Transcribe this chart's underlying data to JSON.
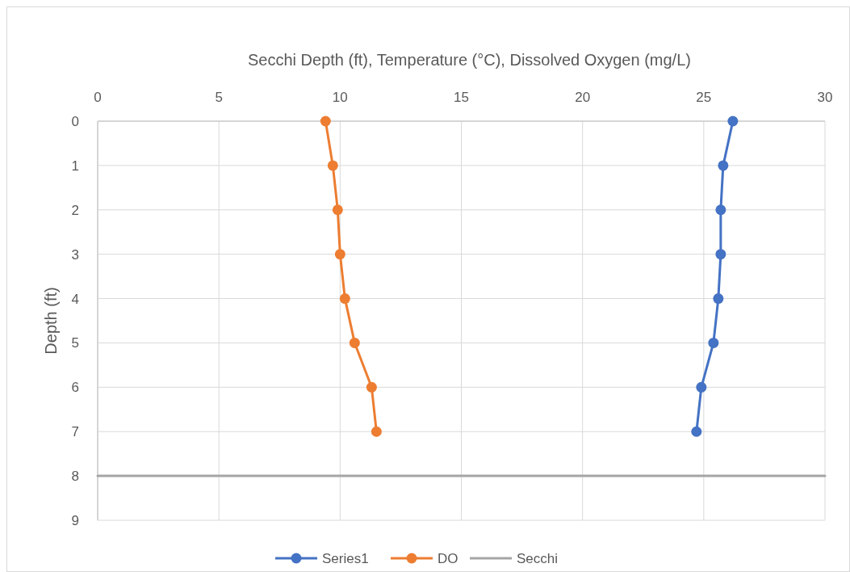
{
  "chart_data": {
    "type": "line",
    "xlabel": "Secchi Depth (ft), Temperature (°C), Dissolved Oxygen (mg/L)",
    "ylabel": "Depth (ft)",
    "xlim": [
      0,
      30
    ],
    "xticks": [
      0,
      5,
      10,
      15,
      20,
      25,
      30
    ],
    "ylim": [
      9,
      0
    ],
    "yticks": [
      0,
      1,
      2,
      3,
      4,
      5,
      6,
      7,
      8,
      9
    ],
    "grid": true,
    "legend": "bottom",
    "marker": "circle",
    "line_style": "solid",
    "series": [
      {
        "name": "Series1",
        "color": "#4472c4",
        "x": [
          26.2,
          25.8,
          25.7,
          25.7,
          25.6,
          25.4,
          24.9,
          24.7
        ],
        "values": [
          0,
          1,
          2,
          3,
          4,
          5,
          6,
          7
        ]
      },
      {
        "name": "DO",
        "color": "#ed7d31",
        "x": [
          9.4,
          9.7,
          9.9,
          10.0,
          10.2,
          10.6,
          11.3,
          11.5
        ],
        "values": [
          0,
          1,
          2,
          3,
          4,
          5,
          6,
          7
        ]
      },
      {
        "name": "Secchi",
        "color": "#a5a5a5",
        "marker": "none",
        "x": [
          0,
          30
        ],
        "values": [
          8,
          8
        ]
      }
    ]
  }
}
